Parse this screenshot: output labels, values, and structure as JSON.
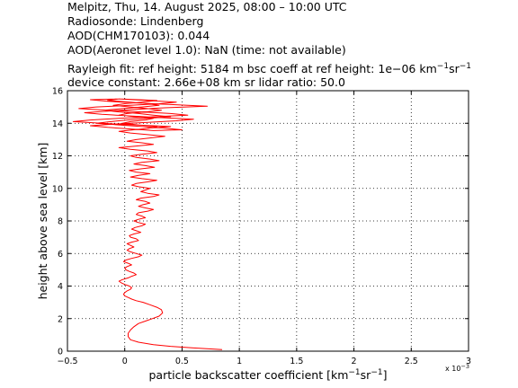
{
  "header": {
    "line1": "Melpitz, Thu, 14. August 2025, 08:00 – 10:00 UTC",
    "line2": "Radiosonde: Lindenberg",
    "line3": "AOD(CHM170103): 0.044",
    "line4": "AOD(Aeronet level 1.0): NaN   (time: not available)",
    "line5_a": "Rayleigh fit:     ref height: 5184 m     bsc coeff at ref height: 1e−06 km",
    "line5_sup1": "−1",
    "line5_b": "sr",
    "line5_sup2": "−1",
    "line6": "device constant: 2.66e+08 km sr     lidar ratio: 50.0"
  },
  "chart_data": {
    "type": "line",
    "ylabel": "height above sea level [km]",
    "xlabel_main": "particle backscatter coefficient [km",
    "xlabel_sup1": "−1",
    "xlabel_mid": "sr",
    "xlabel_sup2": "−1",
    "xlabel_end": "]",
    "x_multiplier": "x 10",
    "x_multiplier_exp": "−3",
    "xlim": [
      -0.5,
      3
    ],
    "ylim": [
      0,
      16
    ],
    "xticks": [
      -0.5,
      0,
      0.5,
      1,
      1.5,
      2,
      2.5,
      3
    ],
    "xtick_labels": [
      "−0.5",
      "0",
      "0.5",
      "1",
      "1.5",
      "2",
      "2.5",
      "3"
    ],
    "yticks": [
      0,
      2,
      4,
      6,
      8,
      10,
      12,
      14,
      16
    ],
    "ytick_labels": [
      "0",
      "2",
      "4",
      "6",
      "8",
      "10",
      "12",
      "14",
      "16"
    ],
    "grid": true,
    "series_color": "#ff0000",
    "series": [
      {
        "x": [
          0.85,
          0.6,
          0.4,
          0.25,
          0.12,
          0.05,
          0.03,
          0.03,
          0.05,
          0.08,
          0.12,
          0.18,
          0.24,
          0.3,
          0.33,
          0.32,
          0.28,
          0.22,
          0.16,
          0.1,
          0.06,
          0.03,
          0.0,
          -0.01,
          0.0,
          0.02,
          0.05,
          0.06,
          0.04,
          0.0,
          -0.03,
          -0.05,
          -0.02,
          0.03,
          0.06,
          0.1,
          0.08,
          0.04,
          0.01,
          0.0,
          0.02,
          0.06,
          0.03,
          -0.01,
          0.01,
          0.06,
          0.12,
          0.15,
          0.1,
          0.05,
          0.02,
          0.04,
          0.08,
          0.05,
          0.02,
          0.06,
          0.12,
          0.1,
          0.05,
          0.04,
          0.08,
          0.14,
          0.1,
          0.06,
          0.09,
          0.15,
          0.18,
          0.12,
          0.08,
          0.12,
          0.18,
          0.15,
          0.1,
          0.12,
          0.2,
          0.25,
          0.18,
          0.12,
          0.16,
          0.22,
          0.18,
          0.1,
          0.14,
          0.25,
          0.3,
          0.2,
          0.14,
          0.18,
          0.22,
          0.12,
          0.06,
          0.1,
          0.2,
          0.28,
          0.15,
          0.05,
          0.12,
          0.22,
          0.1,
          0.04,
          0.14,
          0.26,
          0.18,
          0.08,
          0.15,
          0.3,
          0.22,
          0.1,
          0.05,
          0.15,
          0.28,
          0.2,
          0.05,
          -0.05,
          0.1,
          0.25,
          0.15,
          0.02,
          0.1,
          0.22,
          0.35,
          0.2,
          0.05,
          -0.05,
          0.08,
          0.22,
          0.28,
          0.12,
          -0.02,
          0.05,
          0.18,
          0.25,
          0.1,
          -0.05,
          0.02,
          0.18,
          0.32,
          0.2,
          0.05,
          -0.1,
          0.0,
          0.15,
          0.28,
          0.12,
          -0.05,
          -0.15,
          0.05,
          0.2,
          0.3,
          0.15,
          -0.02,
          -0.18,
          -0.05,
          0.12,
          0.25,
          0.4,
          0.2,
          0.02,
          -0.12,
          -0.25,
          -0.05,
          0.15,
          0.35,
          0.5,
          0.25,
          0.05,
          -0.15,
          -0.3,
          -0.1,
          0.2,
          0.45,
          0.6,
          0.3,
          0.05,
          -0.2,
          -0.35,
          -0.15,
          0.1,
          0.35,
          0.72,
          0.4,
          0.1,
          -0.15,
          -0.3,
          -0.05,
          0.2,
          0.45,
          0.3,
          0.05,
          -0.25,
          -0.4,
          -0.15,
          0.15,
          0.4,
          0.55,
          0.25,
          -0.05,
          -0.3,
          -0.45,
          -0.2,
          0.1,
          0.4,
          0.2
        ],
        "y": [
          0.1,
          0.2,
          0.3,
          0.4,
          0.55,
          0.7,
          0.9,
          1.1,
          1.3,
          1.5,
          1.7,
          1.85,
          2.0,
          2.15,
          2.35,
          2.55,
          2.7,
          2.85,
          3.0,
          3.1,
          3.2,
          3.3,
          3.4,
          3.5,
          3.6,
          3.7,
          3.8,
          3.9,
          4.0,
          4.1,
          4.2,
          4.3,
          4.4,
          4.5,
          4.6,
          4.7,
          4.8,
          4.9,
          5.0,
          5.1,
          5.2,
          5.3,
          5.4,
          5.5,
          5.6,
          5.7,
          5.8,
          5.9,
          6.0,
          6.1,
          6.2,
          6.3,
          6.4,
          6.5,
          6.6,
          6.7,
          6.8,
          6.9,
          7.0,
          7.1,
          7.2,
          7.3,
          7.4,
          7.5,
          7.6,
          7.7,
          7.8,
          7.9,
          8.0,
          8.1,
          8.2,
          8.3,
          8.4,
          8.5,
          8.6,
          8.7,
          8.8,
          8.9,
          9.0,
          9.1,
          9.2,
          9.3,
          9.4,
          9.5,
          9.6,
          9.7,
          9.8,
          9.9,
          10.0,
          10.1,
          10.2,
          10.3,
          10.4,
          10.5,
          10.6,
          10.7,
          10.8,
          10.9,
          11.0,
          11.1,
          11.2,
          11.3,
          11.4,
          11.5,
          11.6,
          11.7,
          11.8,
          11.9,
          12.0,
          12.1,
          12.2,
          12.3,
          12.4,
          12.5,
          12.6,
          12.7,
          12.8,
          12.9,
          13.0,
          13.1,
          13.2,
          13.3,
          13.4,
          13.5,
          13.6,
          13.7,
          13.8,
          13.9,
          14.0,
          14.1,
          14.2,
          14.3,
          14.4,
          14.5,
          14.6,
          14.7,
          14.8,
          14.9,
          15.0,
          15.1,
          15.2,
          15.3,
          15.4,
          15.45,
          15.5,
          15.4,
          15.3,
          15.2,
          15.1,
          15.0,
          14.9,
          14.8,
          14.7,
          14.6,
          14.5,
          14.4,
          14.3,
          14.2,
          14.1,
          14.0,
          13.9,
          13.8,
          13.7,
          13.6,
          13.55,
          13.65,
          13.75,
          13.85,
          13.95,
          14.05,
          14.15,
          14.25,
          14.35,
          14.45,
          14.55,
          14.65,
          14.75,
          14.85,
          14.95,
          15.05,
          15.15,
          15.25,
          15.35,
          15.45,
          15.5,
          15.4,
          15.3,
          15.2,
          15.1,
          15.0,
          14.9,
          14.8,
          14.7,
          14.6,
          14.5,
          14.4,
          14.3,
          14.2,
          14.1,
          14.0,
          13.9,
          13.8,
          13.7
        ]
      }
    ]
  }
}
